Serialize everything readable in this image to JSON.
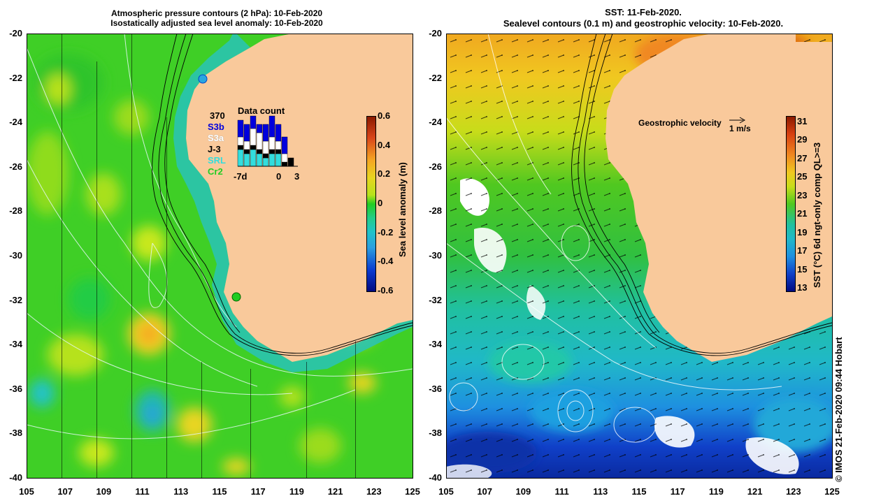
{
  "left_panel": {
    "title_line1": "Atmospheric pressure contours (2 hPa): 10-Feb-2020",
    "title_line2": "Isostatically adjusted sea level anomaly: 10-Feb-2020",
    "colorbar_title": "Sea level anomaly (m)",
    "colorbar_ticks": [
      "0.6",
      "0.4",
      "0.2",
      "0",
      "-0.2",
      "-0.4",
      "-0.6"
    ],
    "colorbar_ticks_values": [
      0.6,
      0.4,
      0.2,
      0,
      -0.2,
      -0.4,
      -0.6
    ],
    "data_count": {
      "title": "Data count",
      "max_label": "370",
      "x_start_label": "-7d",
      "x_zero_label": "0",
      "x_end_label": "3",
      "legend": [
        {
          "label": "S3b",
          "color": "#0000dd"
        },
        {
          "label": "S3a",
          "color": "#ffffff"
        },
        {
          "label": "J-3",
          "color": "#000000"
        },
        {
          "label": "SRL",
          "color": "#33dddd"
        },
        {
          "label": "Cr2",
          "color": "#22cc22"
        }
      ]
    }
  },
  "right_panel": {
    "title_line1": "SST: 11-Feb-2020.",
    "title_line2": "Sealevel contours (0.1 m) and geostrophic velocity: 10-Feb-2020.",
    "colorbar_title": "SST (°C) 6d ngt-only comp QL>=3",
    "colorbar_ticks": [
      "31",
      "29",
      "27",
      "25",
      "23",
      "21",
      "19",
      "17",
      "15",
      "13"
    ],
    "colorbar_ticks_values": [
      31,
      29,
      27,
      25,
      23,
      21,
      19,
      17,
      15,
      13
    ],
    "velocity_label": "Geostrophic velocity",
    "velocity_scale": "1 m/s"
  },
  "axes": {
    "lat_labels": [
      "-20",
      "-22",
      "-24",
      "-26",
      "-28",
      "-30",
      "-32",
      "-34",
      "-36",
      "-38",
      "-40"
    ],
    "lon_labels": [
      "105",
      "107",
      "109",
      "111",
      "113",
      "115",
      "117",
      "119",
      "121",
      "123",
      "125"
    ]
  },
  "credit": "© IMOS 21-Feb-2020 09:44 Hobart",
  "colors": {
    "land": "#f9c99b",
    "sla_green": "#22cc22",
    "sla_yellow": "#c8e61a"
  }
}
